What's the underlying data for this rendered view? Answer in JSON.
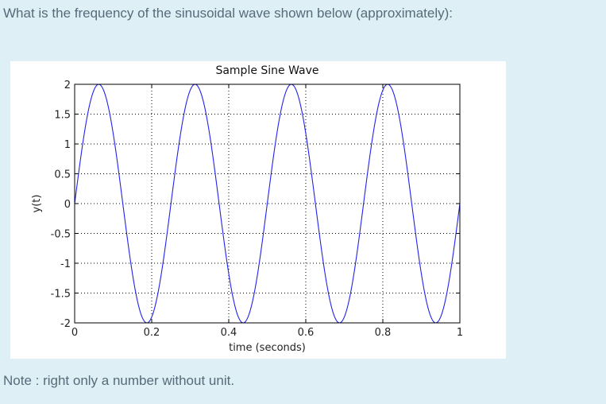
{
  "question": {
    "text": "What is the frequency of the sinusoidal wave shown below (approximately):"
  },
  "note": {
    "text": "Note : right only a number without unit."
  },
  "chart_data": {
    "type": "line",
    "title": "Sample Sine Wave",
    "xlabel": "time (seconds)",
    "ylabel": "y(t)",
    "xlim": [
      0,
      1
    ],
    "ylim": [
      -2,
      2
    ],
    "xticks": [
      0,
      0.2,
      0.4,
      0.6,
      0.8,
      1
    ],
    "xtick_labels": [
      "0",
      "0.2",
      "0.4",
      "0.6",
      "0.8",
      "1"
    ],
    "yticks": [
      2,
      1.5,
      1,
      0.5,
      0,
      -0.5,
      -1,
      -1.5,
      -2
    ],
    "ytick_labels": [
      "2",
      "1.5",
      "1",
      "0.5",
      "0",
      "-0.5",
      "-1",
      "-1.5",
      "-2"
    ],
    "grid": true,
    "color": "#2222ee",
    "series": [
      {
        "function": "2*sin(2*pi*4*t)",
        "amplitude": 2,
        "frequency_hz": 4,
        "x": [
          0,
          0.0625,
          0.125,
          0.1875,
          0.25,
          0.3125,
          0.375,
          0.4375,
          0.5,
          0.5625,
          0.625,
          0.6875,
          0.75,
          0.8125,
          0.875,
          0.9375,
          1
        ],
        "y": [
          0,
          2,
          0,
          -2,
          0,
          2,
          0,
          -2,
          0,
          2,
          0,
          -2,
          0,
          2,
          0,
          -2,
          0
        ]
      }
    ]
  }
}
